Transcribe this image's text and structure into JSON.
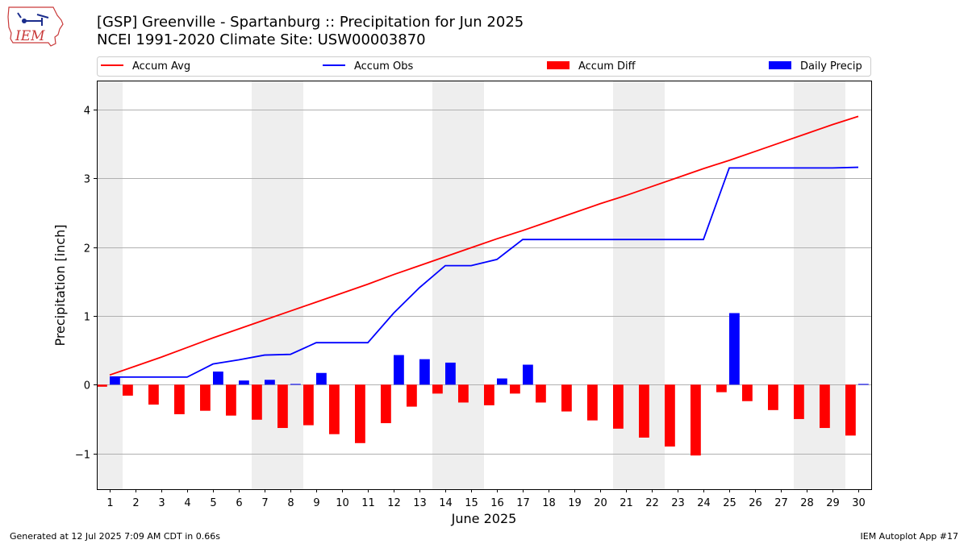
{
  "header": {
    "title_line1": "[GSP] Greenville - Spartanburg :: Precipitation for Jun 2025",
    "title_line2": "NCEI 1991-2020 Climate Site: USW00003870",
    "logo_text": "IEM"
  },
  "footer": {
    "left": "Generated at 12 Jul 2025 7:09 AM CDT in 0.66s",
    "right": "IEM Autoplot App #17"
  },
  "colors": {
    "accum_avg": "#ff0000",
    "accum_obs": "#0000ff",
    "accum_diff": "#ff0000",
    "daily_precip": "#0000ff",
    "weekend_band": "#eeeeee",
    "grid": "#b0b0b0"
  },
  "chart_data": {
    "type": "bar",
    "xlabel": "June 2025",
    "ylabel": "Precipitation [inch]",
    "ylim": [
      -1.52,
      4.42
    ],
    "xlim": [
      0.5,
      30.5
    ],
    "yticks": [
      -1,
      0,
      1,
      2,
      3,
      4
    ],
    "ytick_labels": [
      "−1",
      "0",
      "1",
      "2",
      "3",
      "4"
    ],
    "grid": "horizontal",
    "legend_placement": "top, above plot",
    "days": [
      1,
      2,
      3,
      4,
      5,
      6,
      7,
      8,
      9,
      10,
      11,
      12,
      13,
      14,
      15,
      16,
      17,
      18,
      19,
      20,
      21,
      22,
      23,
      24,
      25,
      26,
      27,
      28,
      29,
      30
    ],
    "weekend_bands": [
      [
        0.5,
        1.5
      ],
      [
        6.5,
        8.5
      ],
      [
        13.5,
        15.5
      ],
      [
        20.5,
        22.5
      ],
      [
        27.5,
        29.5
      ]
    ],
    "series": [
      {
        "name": "Accum Avg",
        "kind": "line",
        "values": [
          0.14,
          0.27,
          0.4,
          0.54,
          0.68,
          0.81,
          0.94,
          1.07,
          1.2,
          1.33,
          1.46,
          1.6,
          1.73,
          1.86,
          1.99,
          2.12,
          2.24,
          2.37,
          2.5,
          2.63,
          2.75,
          2.88,
          3.01,
          3.14,
          3.26,
          3.39,
          3.52,
          3.65,
          3.78,
          3.9
        ]
      },
      {
        "name": "Accum Obs",
        "kind": "line",
        "values": [
          0.11,
          0.11,
          0.11,
          0.11,
          0.3,
          0.36,
          0.43,
          0.44,
          0.61,
          0.61,
          0.61,
          1.04,
          1.41,
          1.73,
          1.73,
          1.82,
          2.11,
          2.11,
          2.11,
          2.11,
          2.11,
          2.11,
          2.11,
          2.11,
          3.15,
          3.15,
          3.15,
          3.15,
          3.15,
          3.16
        ]
      },
      {
        "name": "Accum Diff",
        "kind": "bar",
        "values": [
          -0.03,
          -0.16,
          -0.29,
          -0.43,
          -0.38,
          -0.45,
          -0.51,
          -0.63,
          -0.59,
          -0.72,
          -0.85,
          -0.56,
          -0.32,
          -0.13,
          -0.26,
          -0.3,
          -0.13,
          -0.26,
          -0.39,
          -0.52,
          -0.64,
          -0.77,
          -0.9,
          -1.03,
          -0.11,
          -0.24,
          -0.37,
          -0.5,
          -0.63,
          -0.74
        ]
      },
      {
        "name": "Daily Precip",
        "kind": "bar",
        "values": [
          0.11,
          0,
          0,
          0,
          0.19,
          0.06,
          0.07,
          0.01,
          0.17,
          0,
          0,
          0.43,
          0.37,
          0.32,
          0,
          0.09,
          0.29,
          0,
          0,
          0,
          0,
          0,
          0,
          0,
          1.04,
          0,
          0,
          0,
          0,
          0.01
        ]
      }
    ]
  }
}
